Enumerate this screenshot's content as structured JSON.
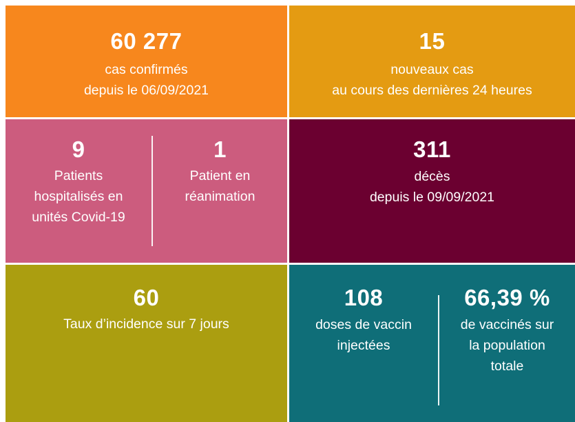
{
  "tiles": {
    "confirmed": {
      "number": "60 277",
      "line1": "cas confirmés",
      "line2": "depuis le 06/09/2021",
      "color": "#F7871D"
    },
    "new_cases": {
      "number": "15",
      "line1": "nouveaux cas",
      "line2": "au cours des dernières 24 heures",
      "color": "#E49B12"
    },
    "hospital": {
      "color": "#CC5C7E",
      "hospitalized": {
        "number": "9",
        "line1": "Patients",
        "line2": "hospitalisés en",
        "line3": "unités Covid-19"
      },
      "icu": {
        "number": "1",
        "line1": "Patient en",
        "line2": "réanimation"
      }
    },
    "deaths": {
      "number": "311",
      "line1": "décès",
      "line2": "depuis le 09/09/2021",
      "color": "#6B0030"
    },
    "incidence": {
      "number": "60",
      "line1": "Taux d’incidence sur 7 jours",
      "color": "#AB9E10"
    },
    "vaccine": {
      "color": "#0F6E78",
      "doses": {
        "number": "108",
        "line1": "doses de vaccin",
        "line2": "injectées"
      },
      "coverage": {
        "number": "66,39 %",
        "line1": "de vaccinés sur",
        "line2": "la population",
        "line3": "totale"
      }
    }
  }
}
